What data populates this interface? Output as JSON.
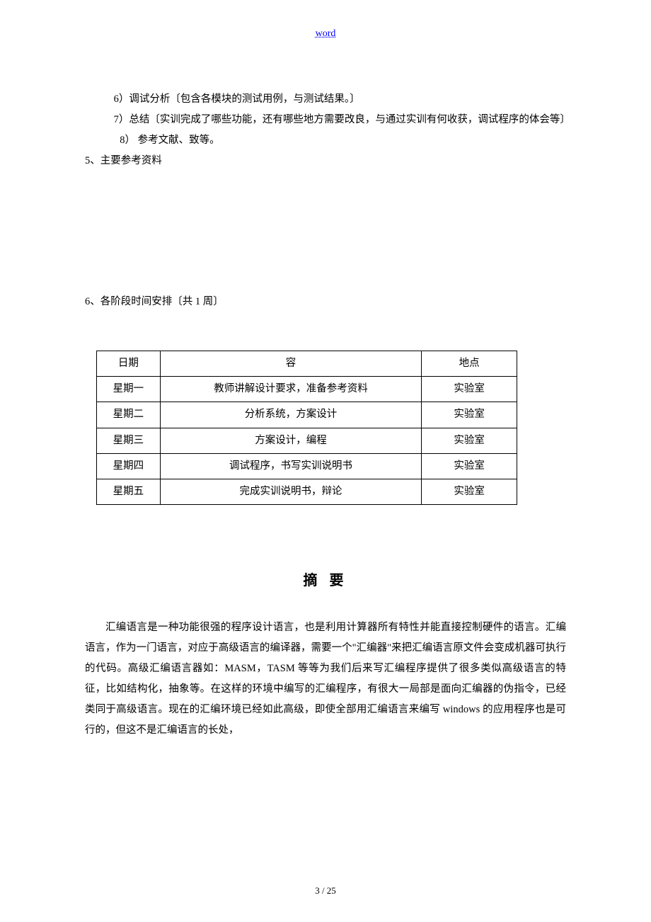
{
  "header": {
    "label": "word"
  },
  "items": {
    "i6": "6）调试分析〔包含各模块的测试用例，与测试结果。〕",
    "i7": "7）总结〔实训完成了哪些功能，还有哪些地方需要改良，与通过实训有何收获，调试程序的体会等〕",
    "i8": "8） 参考文献、致等。"
  },
  "h5": "5、主要参考资料",
  "h6": "6、各阶段时间安排〔共 1 周〕",
  "table": {
    "headers": {
      "date": "日期",
      "content": "容",
      "place": "地点"
    },
    "rows": [
      {
        "date": "星期一",
        "content": "教师讲解设计要求，准备参考资料",
        "place": "实验室"
      },
      {
        "date": "星期二",
        "content": "分析系统，方案设计",
        "place": "实验室"
      },
      {
        "date": "星期三",
        "content": "方案设计，编程",
        "place": "实验室"
      },
      {
        "date": "星期四",
        "content": "调试程序，书写实训说明书",
        "place": "实验室"
      },
      {
        "date": "星期五",
        "content": "完成实训说明书，辩论",
        "place": "实验室"
      }
    ]
  },
  "abstract": {
    "title": "摘 要",
    "body": "汇编语言是一种功能很强的程序设计语言，也是利用计算器所有特性并能直接控制硬件的语言。汇编语言，作为一门语言，对应于高级语言的编译器，需要一个\"汇编器\"来把汇编语言原文件会变成机器可执行的代码。高级汇编语言器如：MASM，TASM 等等为我们后来写汇编程序提供了很多类似高级语言的特征，比如结构化，抽象等。在这样的环境中编写的汇编程序，有很大一局部是面向汇编器的伪指令，已经类同于高级语言。现在的汇编环境已经如此高级，即使全部用汇编语言来编写 windows 的应用程序也是可行的，但这不是汇编语言的长处，"
  },
  "pageNumber": "3 / 25"
}
